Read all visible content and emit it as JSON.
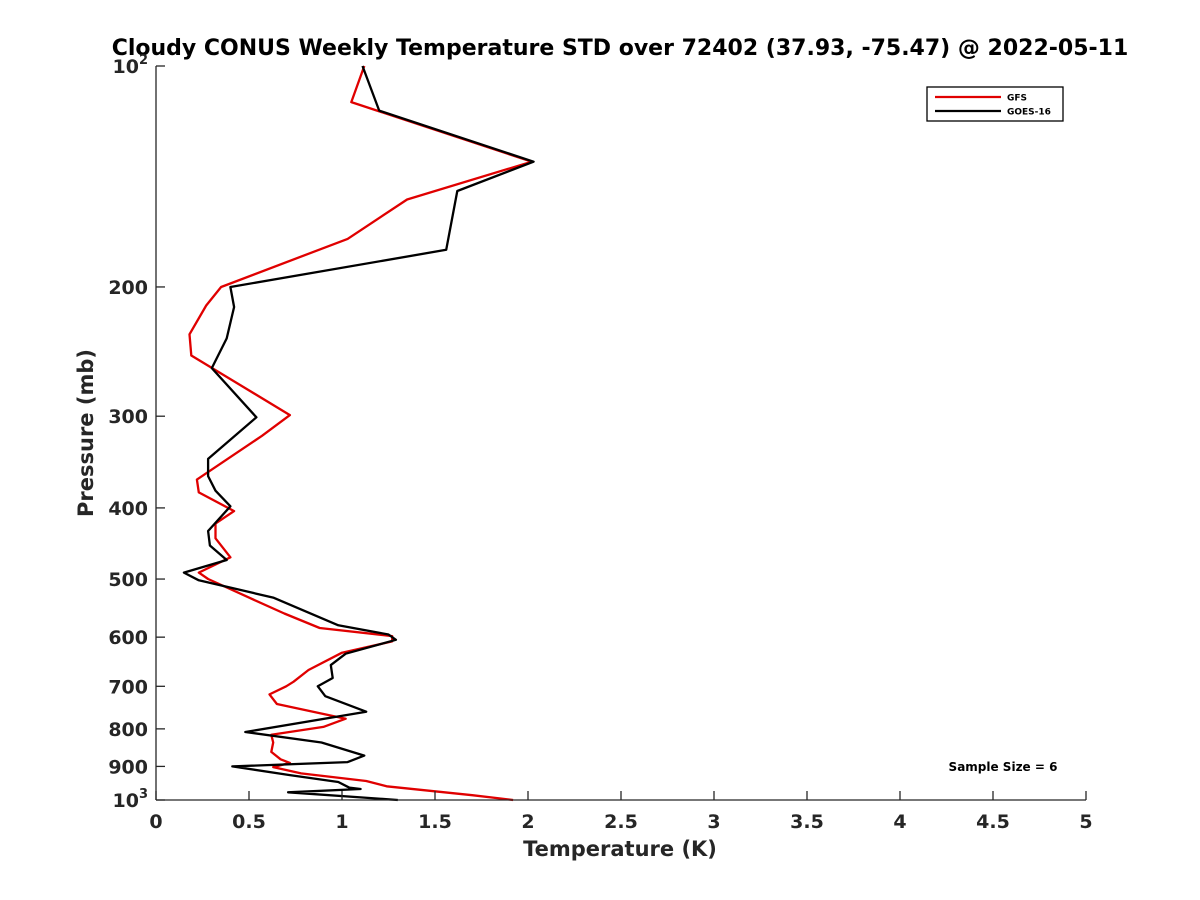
{
  "chart_data": {
    "type": "line",
    "title": "Cloudy CONUS Weekly Temperature STD over 72402 (37.93, -75.47) @ 2022-05-11",
    "xlabel": "Temperature (K)",
    "ylabel": "Pressure (mb)",
    "xlim": [
      0,
      5
    ],
    "ylim": [
      100,
      1000
    ],
    "y_scale": "log",
    "y_reversed": true,
    "x_ticks": [
      0,
      0.5,
      1,
      1.5,
      2,
      2.5,
      3,
      3.5,
      4,
      4.5,
      5
    ],
    "x_tick_labels": [
      "0",
      "0.5",
      "1",
      "1.5",
      "2",
      "2.5",
      "3",
      "3.5",
      "4",
      "4.5",
      "5"
    ],
    "y_ticks": [
      {
        "value": 100,
        "base": "10",
        "exp": "2"
      },
      {
        "value": 200,
        "label": "200"
      },
      {
        "value": 300,
        "label": "300"
      },
      {
        "value": 400,
        "label": "400"
      },
      {
        "value": 500,
        "label": "500"
      },
      {
        "value": 600,
        "label": "600"
      },
      {
        "value": 700,
        "label": "700"
      },
      {
        "value": 800,
        "label": "800"
      },
      {
        "value": 900,
        "label": "900"
      },
      {
        "value": 1000,
        "base": "10",
        "exp": "3"
      }
    ],
    "grid": false,
    "legend_position": "top-right",
    "annotation": "Sample Size = 6",
    "series": [
      {
        "name": "GFS",
        "color": "#e00000",
        "points": [
          [
            1.12,
            100
          ],
          [
            1.05,
            112
          ],
          [
            2.02,
            135
          ],
          [
            1.35,
            152
          ],
          [
            1.03,
            172
          ],
          [
            0.35,
            200
          ],
          [
            0.27,
            212
          ],
          [
            0.18,
            232
          ],
          [
            0.19,
            248
          ],
          [
            0.72,
            299
          ],
          [
            0.57,
            319
          ],
          [
            0.22,
            366
          ],
          [
            0.23,
            381
          ],
          [
            0.42,
            404
          ],
          [
            0.32,
            420
          ],
          [
            0.32,
            440
          ],
          [
            0.4,
            467
          ],
          [
            0.23,
            490
          ],
          [
            0.28,
            500
          ],
          [
            0.5,
            530
          ],
          [
            0.69,
            557
          ],
          [
            0.88,
            583
          ],
          [
            1.27,
            598
          ],
          [
            1.27,
            608
          ],
          [
            1.0,
            630
          ],
          [
            0.82,
            665
          ],
          [
            0.74,
            690
          ],
          [
            0.7,
            700
          ],
          [
            0.61,
            718
          ],
          [
            0.65,
            740
          ],
          [
            1.02,
            775
          ],
          [
            0.9,
            795
          ],
          [
            0.62,
            815
          ],
          [
            0.63,
            835
          ],
          [
            0.62,
            860
          ],
          [
            0.67,
            880
          ],
          [
            0.72,
            890
          ],
          [
            0.63,
            902
          ],
          [
            0.78,
            920
          ],
          [
            1.13,
            942
          ],
          [
            1.24,
            958
          ],
          [
            1.7,
            985
          ],
          [
            1.92,
            1000
          ]
        ]
      },
      {
        "name": "GOES-16",
        "color": "#000000",
        "points": [
          [
            1.11,
            100
          ],
          [
            1.2,
            115
          ],
          [
            2.03,
            135
          ],
          [
            1.62,
            148
          ],
          [
            1.56,
            178
          ],
          [
            0.4,
            200
          ],
          [
            0.42,
            213
          ],
          [
            0.38,
            235
          ],
          [
            0.3,
            258
          ],
          [
            0.54,
            301
          ],
          [
            0.28,
            343
          ],
          [
            0.28,
            362
          ],
          [
            0.32,
            379
          ],
          [
            0.4,
            398
          ],
          [
            0.28,
            430
          ],
          [
            0.29,
            450
          ],
          [
            0.38,
            471
          ],
          [
            0.15,
            490
          ],
          [
            0.23,
            502
          ],
          [
            0.63,
            530
          ],
          [
            0.98,
            578
          ],
          [
            1.25,
            595
          ],
          [
            1.29,
            605
          ],
          [
            1.02,
            632
          ],
          [
            0.94,
            655
          ],
          [
            0.95,
            682
          ],
          [
            0.87,
            700
          ],
          [
            0.91,
            722
          ],
          [
            1.13,
            758
          ],
          [
            0.48,
            808
          ],
          [
            0.89,
            835
          ],
          [
            1.12,
            870
          ],
          [
            1.03,
            888
          ],
          [
            0.41,
            900
          ],
          [
            0.72,
            925
          ],
          [
            0.98,
            945
          ],
          [
            1.04,
            962
          ],
          [
            1.1,
            966
          ],
          [
            0.71,
            976
          ],
          [
            1.3,
            1000
          ]
        ]
      }
    ]
  }
}
